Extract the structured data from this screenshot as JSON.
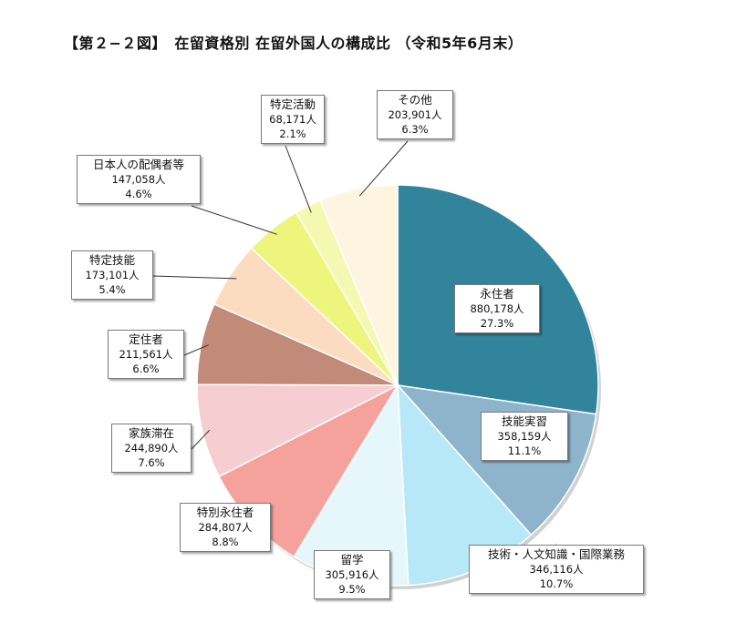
{
  "title": "【第２−２図】　在留資格別 在留外国人の構成比 （令和5年6月末）",
  "chart_data": {
    "type": "pie",
    "title": "【第２−２図】　在留資格別 在留外国人の構成比 （令和5年6月末）",
    "start": "12 o'clock",
    "direction": "clockwise",
    "slices": [
      {
        "name": "永住者",
        "value": 880178,
        "count": "880,178人",
        "percent": "27.3%",
        "color": "#31849B"
      },
      {
        "name": "技能実習",
        "value": 358159,
        "count": "358,159人",
        "percent": "11.1%",
        "color": "#8EB4CC"
      },
      {
        "name": "技術・人文知識・国際業務",
        "value": 346116,
        "count": "346,116人",
        "percent": "10.7%",
        "color": "#B7E8F8"
      },
      {
        "name": "留学",
        "value": 305916,
        "count": "305,916人",
        "percent": "9.5%",
        "color": "#E6F7FB"
      },
      {
        "name": "特別永住者",
        "value": 284807,
        "count": "284,807人",
        "percent": "8.8%",
        "color": "#F5A19C"
      },
      {
        "name": "家族滞在",
        "value": 244890,
        "count": "244,890人",
        "percent": "7.6%",
        "color": "#F6CDD1"
      },
      {
        "name": "定住者",
        "value": 211561,
        "count": "211,561人",
        "percent": "6.6%",
        "color": "#C28A78"
      },
      {
        "name": "特定技能",
        "value": 173101,
        "count": "173,101人",
        "percent": "5.4%",
        "color": "#FBDCC0"
      },
      {
        "name": "日本人の配偶者等",
        "value": 147058,
        "count": "147,058人",
        "percent": "4.6%",
        "color": "#EEF57D"
      },
      {
        "name": "特定活動",
        "value": 68171,
        "count": "68,171人",
        "percent": "2.1%",
        "color": "#F4F8B0"
      },
      {
        "name": "その他",
        "value": 203901,
        "count": "203,901人",
        "percent": "6.3%",
        "color": "#FDF5E0"
      }
    ]
  }
}
